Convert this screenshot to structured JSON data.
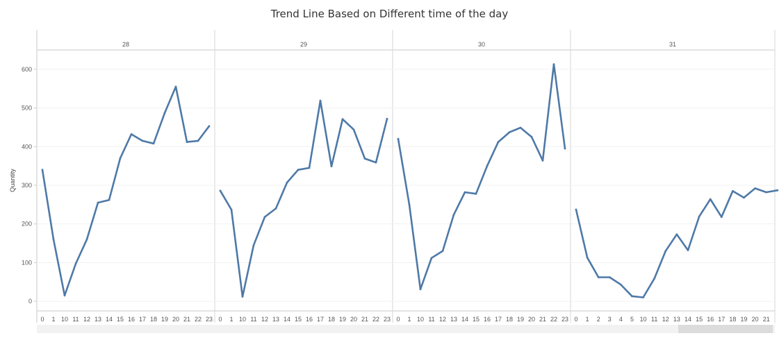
{
  "chart_data": {
    "type": "line",
    "title": "Trend Line Based on Different time of the day",
    "ylabel": "Quantity",
    "ylim": [
      -25,
      650
    ],
    "yticks": [
      0,
      100,
      200,
      300,
      400,
      500,
      600
    ],
    "line_color": "#4e79a7",
    "grid": true,
    "panels": [
      {
        "label": "28",
        "x": [
          "0",
          "1",
          "10",
          "11",
          "12",
          "13",
          "14",
          "15",
          "16",
          "17",
          "18",
          "19",
          "20",
          "21",
          "22",
          "23"
        ],
        "values": [
          340,
          160,
          15,
          97,
          160,
          255,
          262,
          370,
          432,
          415,
          408,
          487,
          555,
          412,
          415,
          453
        ]
      },
      {
        "label": "29",
        "x": [
          "0",
          "1",
          "10",
          "11",
          "12",
          "13",
          "14",
          "15",
          "16",
          "17",
          "18",
          "19",
          "20",
          "21",
          "22",
          "23"
        ],
        "values": [
          286,
          237,
          12,
          145,
          218,
          240,
          307,
          340,
          345,
          519,
          349,
          471,
          444,
          369,
          359,
          472
        ]
      },
      {
        "label": "30",
        "x": [
          "0",
          "1",
          "10",
          "11",
          "12",
          "13",
          "14",
          "15",
          "16",
          "17",
          "18",
          "19",
          "20",
          "21",
          "22",
          "23"
        ],
        "values": [
          420,
          250,
          31,
          112,
          130,
          224,
          282,
          278,
          350,
          412,
          437,
          449,
          425,
          364,
          613,
          395
        ]
      },
      {
        "label": "31",
        "x": [
          "0",
          "1",
          "2",
          "3",
          "4",
          "5",
          "10",
          "11",
          "12",
          "13",
          "14",
          "15",
          "16",
          "17",
          "18",
          "19",
          "20",
          "21",
          "22"
        ],
        "values": [
          237,
          113,
          62,
          62,
          43,
          13,
          10,
          59,
          130,
          173,
          132,
          219,
          264,
          218,
          285,
          268,
          292,
          282,
          287
        ]
      }
    ]
  }
}
